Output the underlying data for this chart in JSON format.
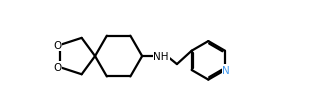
{
  "bg_color": "#ffffff",
  "line_color": "#000000",
  "line_width": 1.6,
  "label_color_N": "#4499ee",
  "font_size_atoms": 7.5,
  "fig_w": 3.28,
  "fig_h": 1.13,
  "dpi": 100,
  "xlim": [
    0,
    9.5
  ],
  "ylim": [
    0,
    3.2
  ],
  "spiro_x": 2.9,
  "spiro_y": 1.6,
  "r_hex": 0.88,
  "r_pyr": 0.72
}
